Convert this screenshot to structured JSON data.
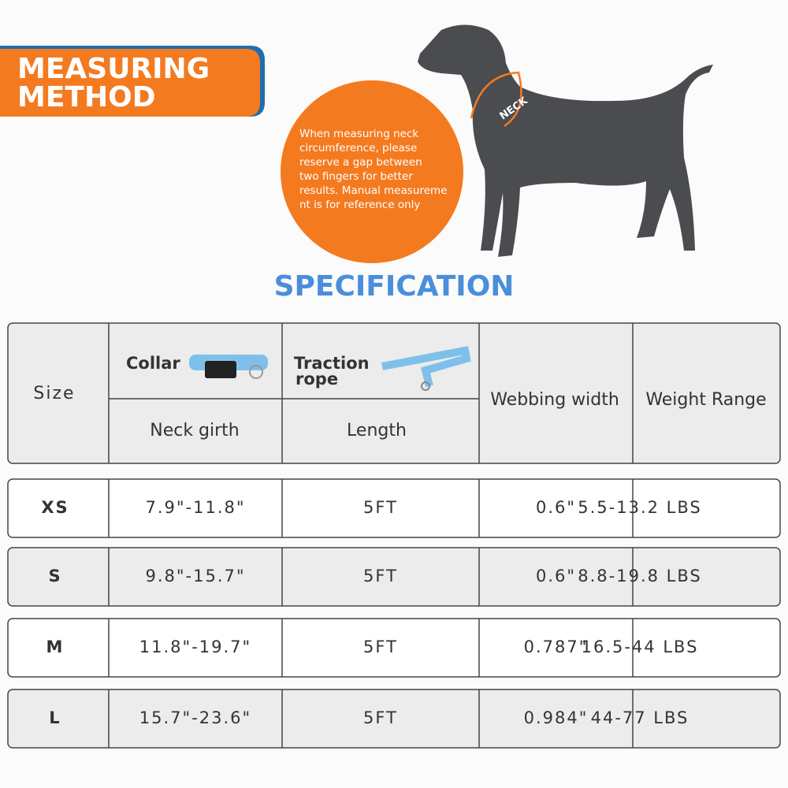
{
  "header": {
    "title_lines": [
      "MEASURING",
      "METHOD"
    ]
  },
  "note": {
    "lines": [
      "When measuring neck",
      "circumference, please",
      "reserve a gap between",
      "two fingers for better",
      "results. Manual measureme",
      "nt is for reference only"
    ]
  },
  "dog": {
    "label": "NECK"
  },
  "specification": {
    "title": "SPECIFICATION"
  },
  "table": {
    "header": {
      "size": "Size",
      "collar": "Collar",
      "traction_rope": [
        "Traction",
        "rope"
      ],
      "neck_girth": "Neck girth",
      "length": "Length",
      "webbing_width": "Webbing width",
      "weight_range": "Weight Range"
    },
    "rows": [
      [
        "XS",
        "7.9\"-11.8\"",
        "5FT",
        "0.6\"",
        "5.5-13.2 LBS"
      ],
      [
        "S",
        "9.8\"-15.7\"",
        "5FT",
        "0.6\"",
        "8.8-19.8 LBS"
      ],
      [
        "M",
        "11.8\"-19.7\"",
        "5FT",
        "0.787\"",
        "16.5-44 LBS"
      ],
      [
        "L",
        "15.7\"-23.6\"",
        "5FT",
        "0.984\"",
        "44-77 LBS"
      ]
    ]
  }
}
